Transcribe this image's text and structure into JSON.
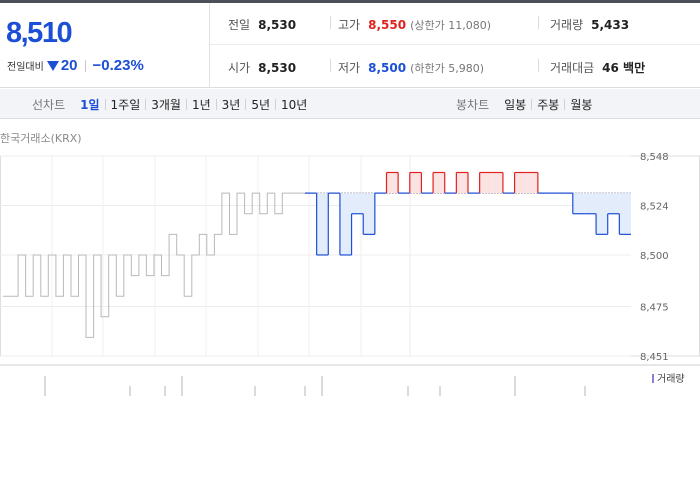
{
  "quote": {
    "price": "8,510",
    "change_label": "전일대비",
    "change_amount": "20",
    "change_rate": "−0.23%"
  },
  "stats": {
    "prev_close": {
      "label": "전일",
      "value": "8,530"
    },
    "high": {
      "label": "고가",
      "value": "8,550",
      "sub": "(상한가 11,080)"
    },
    "volume": {
      "label": "거래량",
      "value": "5,433"
    },
    "open": {
      "label": "시가",
      "value": "8,530"
    },
    "low": {
      "label": "저가",
      "value": "8,500",
      "sub": "(하한가 5,980)"
    },
    "trade_value": {
      "label": "거래대금",
      "value": "46 백만"
    }
  },
  "tabs": {
    "line_label": "선차트",
    "line_items": [
      "1일",
      "1주일",
      "3개월",
      "1년",
      "3년",
      "5년",
      "10년"
    ],
    "line_active": "1일",
    "candle_label": "봉차트",
    "candle_items": [
      "일봉",
      "주봉",
      "월봉"
    ]
  },
  "chart": {
    "source": "한국거래소(KRX)",
    "volume_legend": "거래량"
  },
  "colors": {
    "up": "#e0211d",
    "down": "#1c4fd6",
    "prior": "#b9b9b9"
  },
  "chart_data": {
    "type": "line",
    "xlabel": "",
    "ylabel": "",
    "ylim": [
      8451,
      8548
    ],
    "y_ticks": [
      "8,548",
      "8,524",
      "8,500",
      "8,475",
      "8,451"
    ],
    "y_tick_values": [
      8548,
      8524,
      8500,
      8475,
      8451
    ],
    "reference_price": 8530,
    "grid": true,
    "prior_session": {
      "name": "",
      "values": [
        8480,
        8480,
        8500,
        8480,
        8500,
        8480,
        8500,
        8480,
        8500,
        8480,
        8500,
        8460,
        8500,
        8470,
        8500,
        8480,
        8500,
        8490,
        8500,
        8490,
        8500,
        8490,
        8510,
        8500,
        8480,
        8500,
        8510,
        8500,
        8510,
        8530,
        8510,
        8530,
        8520,
        8530,
        8520,
        8530,
        8520,
        8530,
        8530,
        8530
      ]
    },
    "current_session": {
      "name": "",
      "values": [
        8530,
        8500,
        8530,
        8500,
        8520,
        8510,
        8530,
        8540,
        8530,
        8540,
        8530,
        8540,
        8530,
        8540,
        8530,
        8540,
        8540,
        8530,
        8540,
        8540,
        8530,
        8530,
        8530,
        8520,
        8520,
        8510,
        8520,
        8510
      ]
    }
  }
}
